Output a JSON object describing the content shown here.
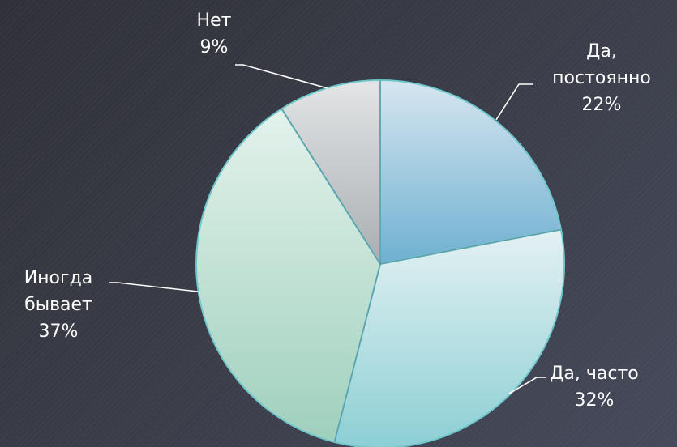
{
  "chart_data": {
    "type": "pie",
    "title": "",
    "slices": [
      {
        "label_lines": [
          "Да,",
          "постоянно"
        ],
        "value": 22,
        "value_label": "22%"
      },
      {
        "label_lines": [
          "Да, часто"
        ],
        "value": 32,
        "value_label": "32%"
      },
      {
        "label_lines": [
          "Иногда",
          "бывает"
        ],
        "value": 37,
        "value_label": "37%"
      },
      {
        "label_lines": [
          "Нет"
        ],
        "value": 9,
        "value_label": "9%"
      }
    ],
    "colors": {
      "slice_top": [
        "#d6e6f0",
        "#e4f1f3",
        "#e4f2ec",
        "#e3e5e6"
      ],
      "slice_bottom": [
        "#6fb0d1",
        "#8ccfd4",
        "#9fd0bd",
        "#a8aeb2"
      ],
      "outline": "#6fc7cc",
      "leader": "#ffffff"
    }
  }
}
